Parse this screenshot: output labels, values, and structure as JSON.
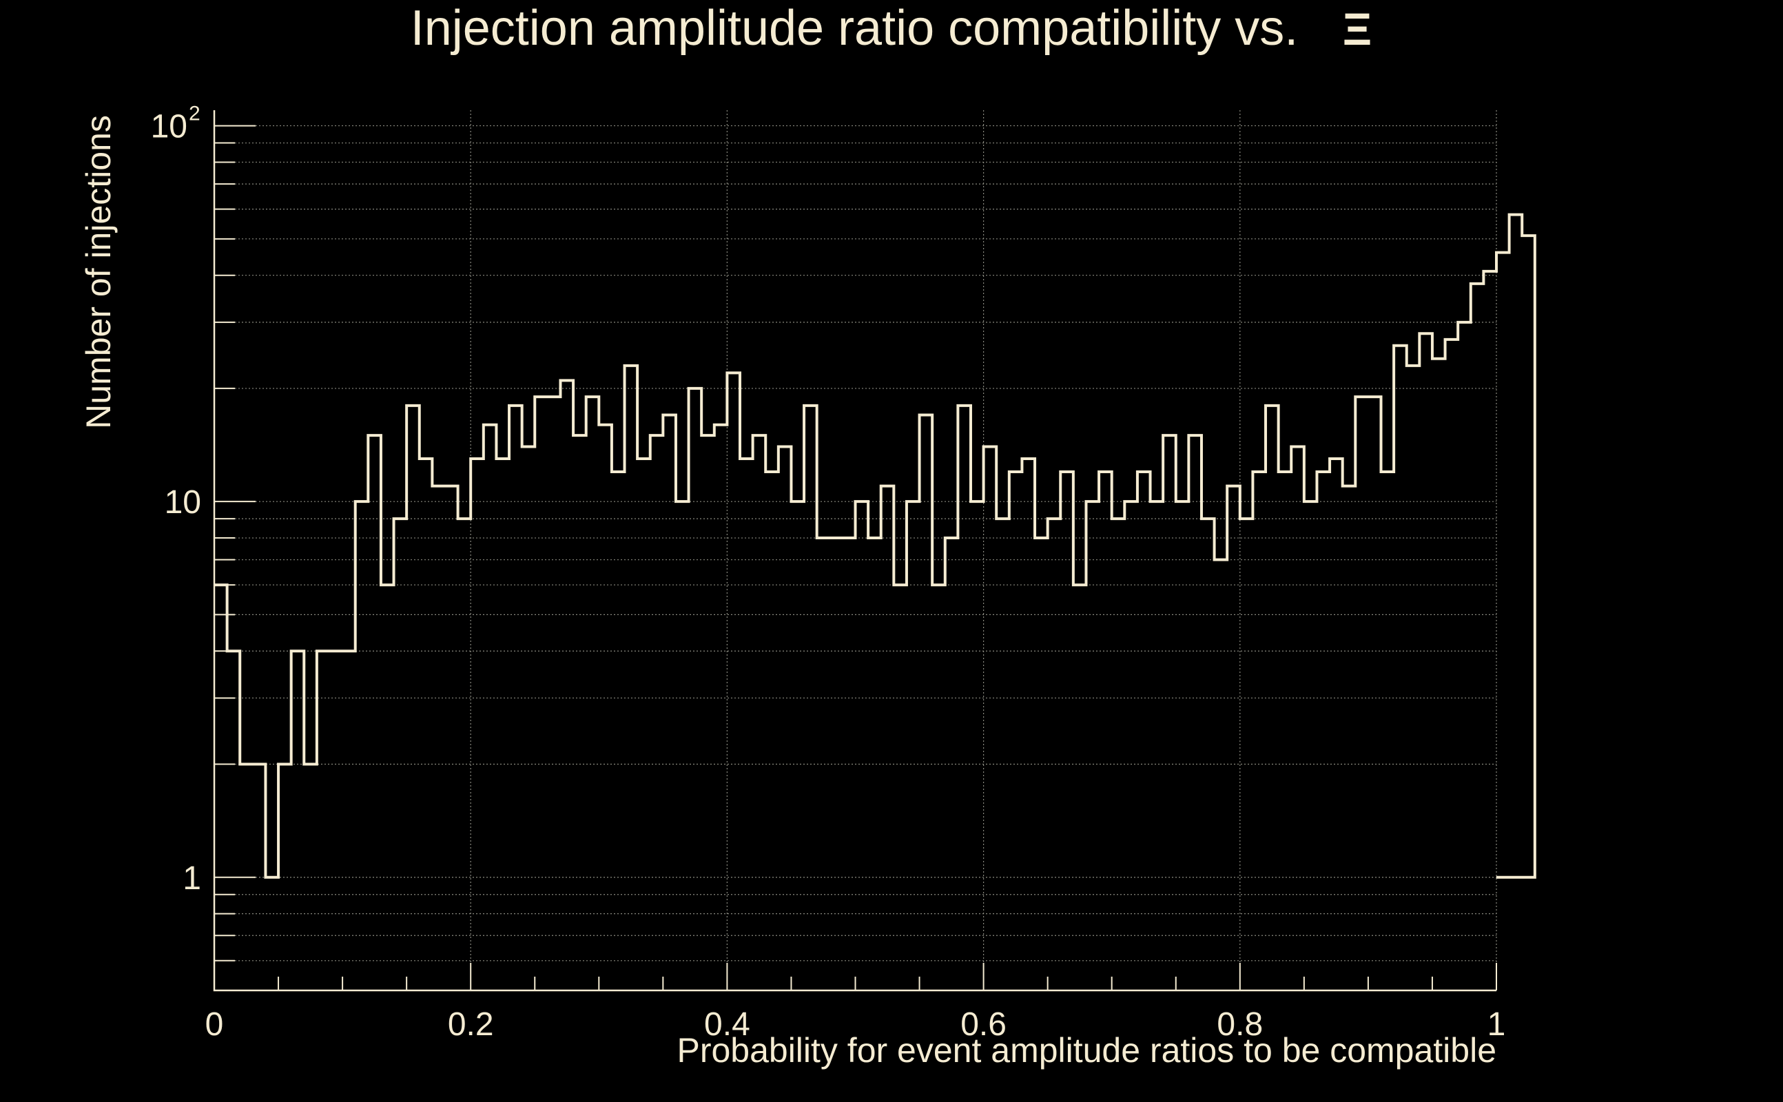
{
  "chart_data": {
    "type": "histogram",
    "title": "Injection amplitude ratio compatibility vs.",
    "title_symbol": "Ξ",
    "xlabel": "Probability for event amplitude ratios to be compatible",
    "ylabel": "Number of injections",
    "xlim": [
      0,
      1
    ],
    "ylim": [
      0.5,
      110
    ],
    "yscale": "log",
    "grid": true,
    "x_ticks": [
      {
        "value": 0,
        "label": "0"
      },
      {
        "value": 0.2,
        "label": "0.2"
      },
      {
        "value": 0.4,
        "label": "0.4"
      },
      {
        "value": 0.6,
        "label": "0.6"
      },
      {
        "value": 0.8,
        "label": "0.8"
      },
      {
        "value": 1,
        "label": "1"
      }
    ],
    "y_ticks": [
      {
        "value": 1,
        "label": "1",
        "sup": ""
      },
      {
        "value": 10,
        "label": "10",
        "sup": ""
      },
      {
        "value": 100,
        "label": "10",
        "sup": "2"
      }
    ],
    "bin_width": 0.01,
    "bin_start": 0,
    "counts": [
      6,
      4,
      2,
      2,
      1,
      2,
      4,
      2,
      4,
      4,
      4,
      10,
      15,
      6,
      9,
      18,
      13,
      11,
      11,
      9,
      13,
      16,
      13,
      18,
      14,
      19,
      19,
      21,
      15,
      19,
      16,
      12,
      23,
      13,
      15,
      17,
      10,
      20,
      15,
      16,
      22,
      13,
      15,
      12,
      14,
      10,
      18,
      8,
      8,
      8,
      10,
      8,
      11,
      6,
      10,
      17,
      6,
      8,
      18,
      10,
      14,
      9,
      12,
      13,
      8,
      9,
      12,
      6,
      10,
      12,
      9,
      10,
      12,
      10,
      15,
      10,
      15,
      9,
      7,
      11,
      9,
      12,
      18,
      12,
      14,
      10,
      12,
      13,
      11,
      19,
      19,
      12,
      26,
      23,
      28,
      24,
      27,
      30,
      38,
      41,
      46,
      58,
      51
    ]
  }
}
